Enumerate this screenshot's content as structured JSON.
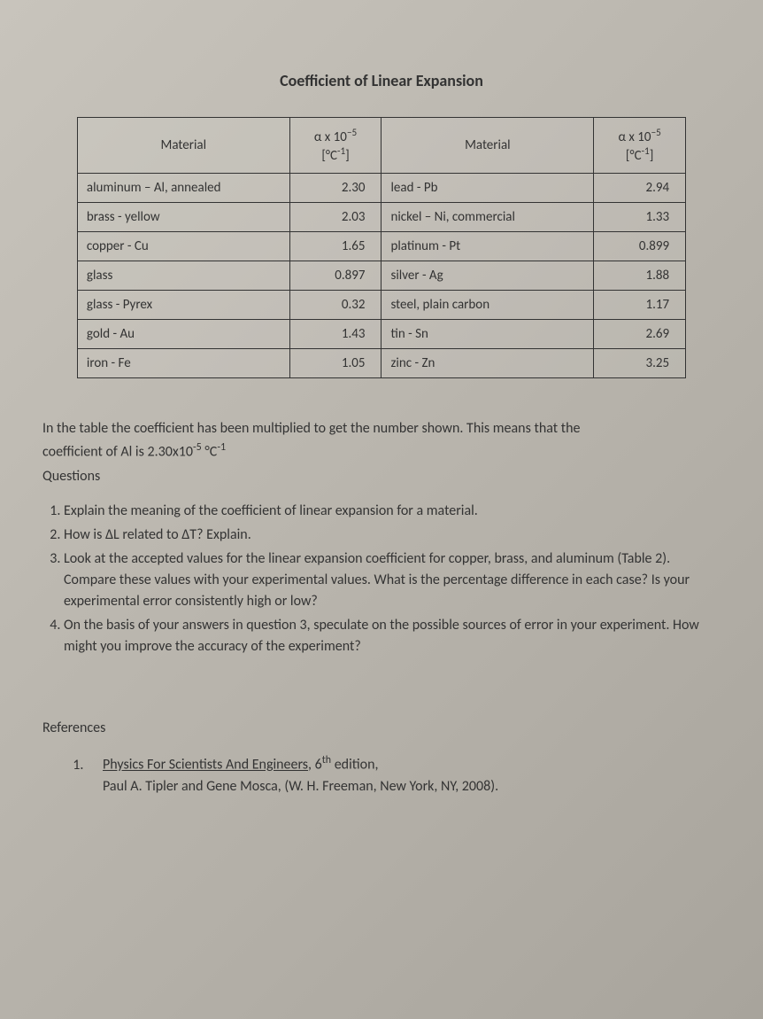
{
  "title": "Coefficient of Linear Expansion",
  "table": {
    "header": {
      "col1": "Material",
      "col2_line1": "α x 10",
      "col2_exp": "−5",
      "col2_line2": "[°C",
      "col2_unit_exp": "-1",
      "col2_close": "]",
      "col3": "Material",
      "col4_line1": "α x 10",
      "col4_exp": "−5",
      "col4_line2": "[°C",
      "col4_unit_exp": "-1",
      "col4_close": "]"
    },
    "rows": [
      {
        "m1": "aluminum – Al, annealed",
        "v1": "2.30",
        "m2": "lead - Pb",
        "v2": "2.94"
      },
      {
        "m1": "brass - yellow",
        "v1": "2.03",
        "m2": "nickel – Ni, commercial",
        "v2": "1.33"
      },
      {
        "m1": "copper - Cu",
        "v1": "1.65",
        "m2": "platinum - Pt",
        "v2": "0.899"
      },
      {
        "m1": "glass",
        "v1": "0.897",
        "m2": "silver - Ag",
        "v2": "1.88"
      },
      {
        "m1": "glass - Pyrex",
        "v1": "0.32",
        "m2": "steel, plain carbon",
        "v2": "1.17"
      },
      {
        "m1": "gold - Au",
        "v1": "1.43",
        "m2": "tin - Sn",
        "v2": "2.69"
      },
      {
        "m1": "iron - Fe",
        "v1": "1.05",
        "m2": "zinc - Zn",
        "v2": "3.25"
      }
    ]
  },
  "explanation": {
    "line1": "In the table the coefficient has been multiplied to get the number shown. This means that the",
    "line2_pre": "coefficient of Al is 2.30x10",
    "line2_exp": "-5",
    "line2_mid": " °C",
    "line2_exp2": "-1"
  },
  "questions_label": "Questions",
  "questions": [
    "Explain the meaning of the coefficient of linear expansion for a material.",
    "How is ΔL related to ΔT? Explain.",
    "Look at the accepted values for the linear expansion coefficient for copper, brass, and aluminum (Table 2). Compare these values with your experimental values. What is the percentage difference in each case? Is your experimental error consistently high or low?",
    "On the basis of your answers in question 3, speculate on the possible sources of error in your experiment. How might you improve the accuracy of the experiment?"
  ],
  "references_label": "References",
  "references": {
    "book_title": "Physics For Scientists And Engineers",
    "edition_pre": ", 6",
    "edition_sup": "th",
    "edition_post": " edition,",
    "line2": "Paul A. Tipler and Gene Mosca, (W. H. Freeman, New York, NY, 2008)."
  },
  "colors": {
    "text": "#333333",
    "border": "#333333",
    "background": "#b8b4ac"
  }
}
